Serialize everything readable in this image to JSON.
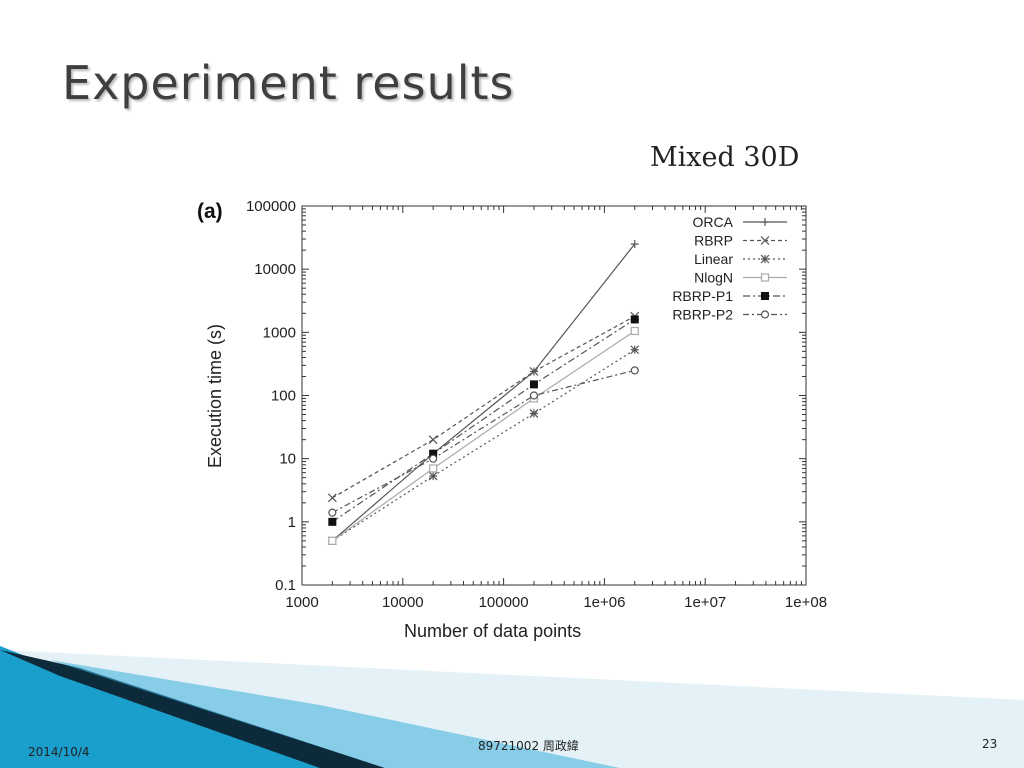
{
  "slide": {
    "title": "Experiment results",
    "date": "2014/10/4",
    "footer_center": "89721002 周政緯",
    "page_number": "23"
  },
  "colors": {
    "deco_dark": "#0c2a3a",
    "deco_blue": "#1a9fcc",
    "deco_light": "#d7ecf3"
  },
  "chart_data": {
    "type": "line",
    "panel_label": "(a)",
    "title": "Mixed 30D",
    "xlabel": "Number of data points",
    "ylabel": "Execution time (s)",
    "x_scale": "log",
    "y_scale": "log",
    "xlim": [
      1000,
      100000000
    ],
    "ylim": [
      0.1,
      100000
    ],
    "x_ticks": [
      1000,
      10000,
      100000,
      1000000,
      10000000,
      100000000
    ],
    "x_tick_labels": [
      "1000",
      "10000",
      "100000",
      "1e+06",
      "1e+07",
      "1e+08"
    ],
    "y_ticks": [
      0.1,
      1,
      10,
      100,
      1000,
      10000,
      100000
    ],
    "y_tick_labels": [
      "0.1",
      "1",
      "10",
      "100",
      "1000",
      "10000",
      "100000"
    ],
    "legend_position": "top-right",
    "x": [
      2000,
      20000,
      200000,
      2000000
    ],
    "series": [
      {
        "name": "ORCA",
        "marker": "plus",
        "dash": "",
        "color": "#555555",
        "values": [
          0.5,
          12,
          240,
          25000
        ]
      },
      {
        "name": "RBRP",
        "marker": "cross",
        "dash": "4,3",
        "color": "#555555",
        "values": [
          2.4,
          20,
          240,
          1800
        ]
      },
      {
        "name": "Linear",
        "marker": "star",
        "dash": "2,3",
        "color": "#555555",
        "values": [
          0.5,
          5.3,
          52,
          530
        ]
      },
      {
        "name": "NlogN",
        "marker": "square-open",
        "dash": "",
        "color": "#aaaaaa",
        "values": [
          0.5,
          7,
          90,
          1050
        ]
      },
      {
        "name": "RBRP-P1",
        "marker": "square-filled",
        "dash": "7,3,2,3",
        "color": "#555555",
        "values": [
          1.0,
          12,
          150,
          1600
        ]
      },
      {
        "name": "RBRP-P2",
        "marker": "circle-open",
        "dash": "6,3,2,3",
        "color": "#555555",
        "values": [
          1.4,
          10,
          100,
          250
        ]
      }
    ]
  }
}
